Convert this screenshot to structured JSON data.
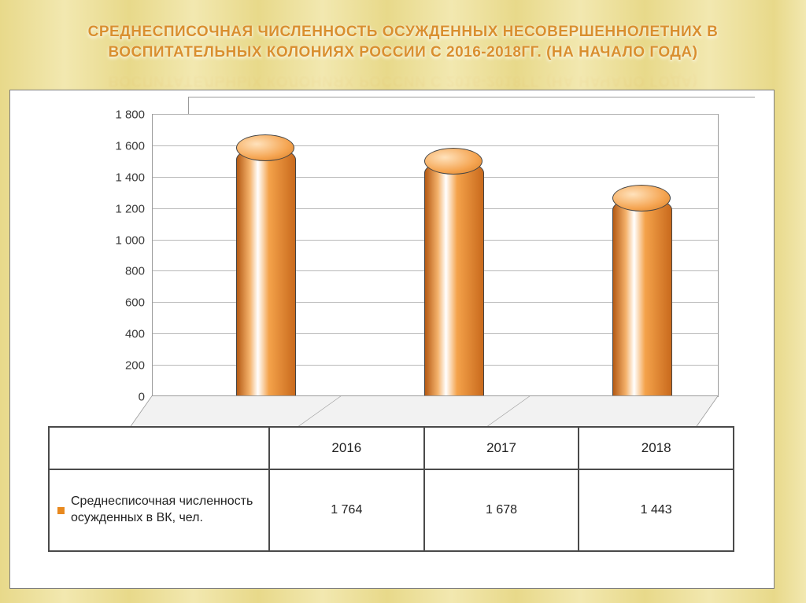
{
  "title_line1": "СРЕДНЕСПИСОЧНАЯ ЧИСЛЕННОСТЬ ОСУЖДЕННЫХ  НЕСОВЕРШЕННОЛЕТНИХ В",
  "title_line2": "ВОСПИТАТЕЛЬНЫХ КОЛОНИЯХ РОССИИ С 2016-2018ГГ. (НА НАЧАЛО ГОДА)",
  "chart": {
    "type": "bar-3d-cylinder",
    "categories": [
      "2016",
      "2017",
      "2018"
    ],
    "values": [
      1764,
      1678,
      1443
    ],
    "value_labels": [
      "1 764",
      "1 678",
      "1 443"
    ],
    "series_label": "Среднесписочная численность осужденных в ВК, чел.",
    "bar_color_light": "#f4b26b",
    "bar_color_dark": "#c96a1d",
    "bar_cap_color": "#f5a552",
    "ylim": [
      0,
      1800
    ],
    "ytick_step": 200,
    "yticks": [
      "0",
      "200",
      "400",
      "600",
      "800",
      "1 000",
      "1 200",
      "1 400",
      "1 600",
      "1 800"
    ],
    "grid_color": "#b8b8b8",
    "panel_border": "#7e7e7e",
    "background_color": "#ffffff",
    "axis_font_size": 15,
    "cat_font_size": 16,
    "title_color": "#d98f2e",
    "title_font_size": 19,
    "legend_marker_color": "#e8891f",
    "page_bg_colors": [
      "#e8d98a",
      "#f2e8b0"
    ]
  }
}
